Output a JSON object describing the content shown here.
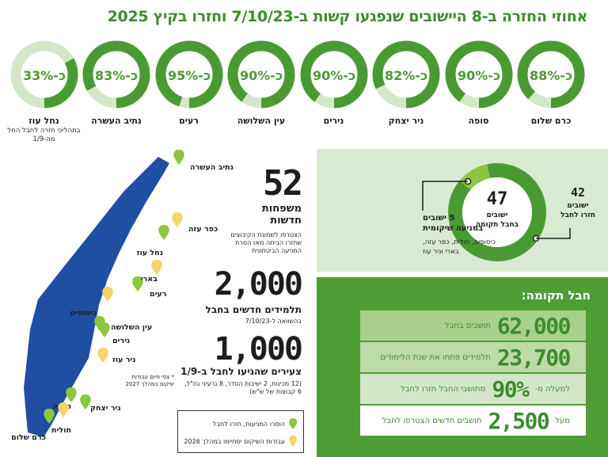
{
  "title": "אחוזי החזרה ב-8 היישובים שנפגעו קשות ב-7/10/23 וחזרו בקיץ 2025",
  "colors": {
    "dark_green": "#4a9a33",
    "light_green": "#d3e7c8",
    "lime": "#8cc63f",
    "yellow": "#f5d36b",
    "navy": "#1f4ea3"
  },
  "chart_data": [
    {
      "type": "pie",
      "title": "אחוזי החזרה ב-8 היישובים שנפגעו קשות ב-7/10/23 וחזרו בקיץ 2025",
      "categories": [
        "כרם שלום",
        "סופה",
        "ניר יצחק",
        "נירים",
        "עין השלושה",
        "רעים",
        "נתיב העשרה",
        "נחל עוז"
      ],
      "values": [
        88,
        90,
        82,
        90,
        90,
        95,
        83,
        33
      ],
      "value_labels": [
        "כ-88%",
        "כ-90%",
        "כ-82%",
        "כ-90%",
        "כ-90%",
        "כ-95%",
        "כ-83%",
        "כ-33%"
      ],
      "notes": [
        "",
        "",
        "",
        "",
        "",
        "",
        "",
        "בתהליכי חזרה לחבל החל מה-1/9"
      ]
    },
    {
      "type": "pie",
      "categories": [
        "ישובים חזרו לחבל",
        "ישובים במניעה שיקומית"
      ],
      "values": [
        42,
        5
      ],
      "total": "47",
      "total_label": "ישובים בחבל תקומה",
      "outer_value": "42",
      "outer_label": "ישובים חזרו לחבל",
      "inner_value": "5",
      "inner_label": "ישובים במניעה שיקומית",
      "inner_note": "כיסופים, חולית, כפר עזה, בארי וניר עוז"
    },
    {
      "type": "bar",
      "title": "חבל תקומה:",
      "rows": [
        {
          "prefix": "",
          "value": "62,000",
          "label": "תושבים בחבל",
          "fill": 1.0
        },
        {
          "prefix": "",
          "value": "23,700",
          "label": "תלמידים פתחו את שנת הלימודים",
          "fill": 0.85
        },
        {
          "prefix": "למעלה מ-",
          "value": "90%",
          "label": "מתושבי החבל חזרו לחבל",
          "fill": 0.9
        },
        {
          "prefix": "מעל",
          "value": "2,500",
          "label": "תושבים חדשים הצטרפו לחבל",
          "fill": 0.0
        }
      ]
    }
  ],
  "stats": [
    {
      "value": "52",
      "label_line1": "משפחות",
      "label_line2": "חדשות",
      "desc": "הצטרפו לשמונת הקיבוצים שחזרו הביתה מאז הסרת המניעה הביטחונית"
    },
    {
      "value": "2,000",
      "label_line1": "תלמידים חדשים בחבל",
      "label_line2": "",
      "desc": "בהשוואה ל-7/10/23"
    },
    {
      "value": "1,000",
      "label_line1": "צעירים שהגיעו לחבל ב-1/9",
      "label_line2": "",
      "desc": "(12 מכינות, 2 ישיבות הסדר, 8 גרעיני נח\"ל, 6 קבוצות של ש\"ש)"
    }
  ],
  "map": {
    "pins_green": [
      {
        "name": "נתיב העשרה"
      },
      {
        "name": "נחל עוז"
      },
      {
        "name": "רעים"
      },
      {
        "name": "עין השלושה"
      },
      {
        "name": "נירים"
      },
      {
        "name": "ניר יצחק"
      },
      {
        "name": "סופה"
      },
      {
        "name": "כרם שלום"
      }
    ],
    "pins_yellow": [
      {
        "name": "כפר עזה"
      },
      {
        "name": "בארי"
      },
      {
        "name": "כיסופים"
      },
      {
        "name": "ניר עוז"
      },
      {
        "name": "חולית"
      }
    ],
    "note": "* צפי סיום עבודות שיקום במהלך 2027"
  },
  "legend": {
    "green": "הוסרו המניעות, חזרו לחבל",
    "yellow": "עבודות השיקום יסתיימו במהלך 2026"
  }
}
